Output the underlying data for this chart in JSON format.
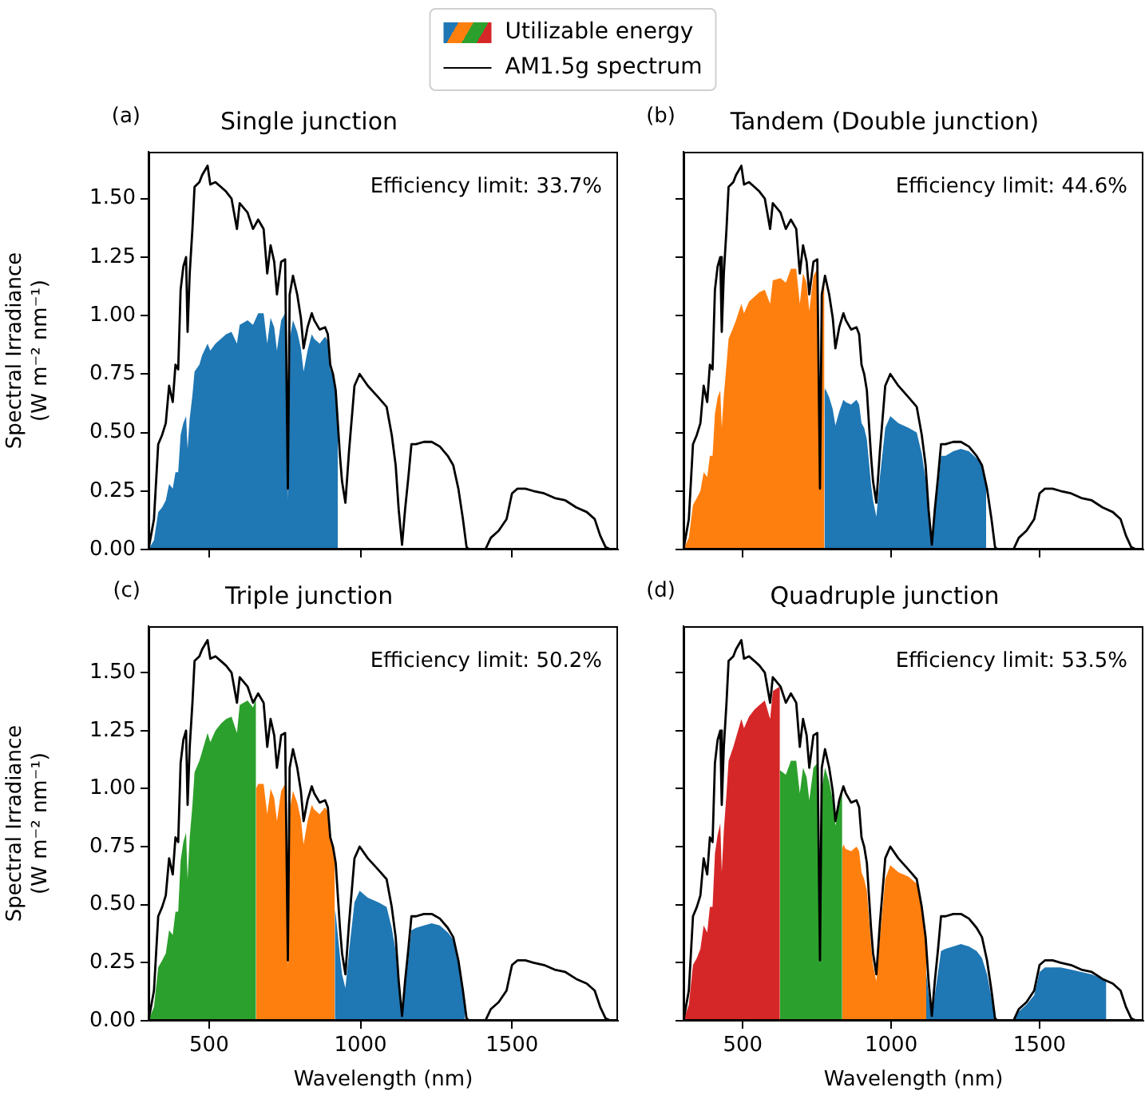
{
  "chart_data": [
    {
      "type": "area",
      "title": "Single junction",
      "ylabel": "Spectral Irradiance\n(W m⁻² nm⁻¹)",
      "xlim": [
        300,
        1850
      ],
      "xticks": [
        500,
        1000,
        1500
      ],
      "ylim": [
        0,
        1.7
      ],
      "yticks": [
        {
          "value": 0,
          "label": "0.00"
        },
        0.25,
        {
          "value": 0.5,
          "label": "0.50"
        },
        0.75,
        {
          "value": 1,
          "label": "1.00"
        },
        1.25,
        {
          "value": 1.5,
          "label": "1.50"
        }
      ],
      "tick_labels": "y",
      "legend": "top",
      "annotations": [
        "(a)",
        "Efficiency limit: 33.7%"
      ],
      "series": [
        {
          "name": "Utilizable energy",
          "color": "#1f77b4",
          "x": [
            300,
            318,
            332,
            345,
            357,
            368,
            380,
            389,
            398,
            406,
            415,
            424,
            429,
            436,
            445,
            452,
            468,
            477,
            495,
            504,
            521,
            539,
            556,
            574,
            592,
            601,
            627,
            645,
            662,
            680,
            692,
            703,
            715,
            724,
            738,
            751,
            760,
            766,
            777,
            791,
            803,
            812,
            825,
            839,
            847,
            865,
            883,
            892,
            900,
            909,
            918,
            925
          ],
          "values": [
            0,
            0.04,
            0.16,
            0.18,
            0.21,
            0.28,
            0.26,
            0.33,
            0.33,
            0.49,
            0.54,
            0.57,
            0.43,
            0.56,
            0.66,
            0.76,
            0.79,
            0.83,
            0.88,
            0.85,
            0.88,
            0.9,
            0.92,
            0.93,
            0.88,
            0.96,
            0.98,
            0.96,
            1.01,
            1.01,
            0.88,
            0.99,
            0.95,
            0.85,
            0.98,
            1.01,
            0.21,
            0.9,
            0.98,
            0.93,
            0.86,
            0.76,
            0.85,
            0.92,
            0.9,
            0.88,
            0.91,
            0.89,
            0.77,
            0.74,
            0.67,
            0.54
          ]
        },
        {
          "name": "AM1.5g spectrum",
          "type": "line",
          "color": "#000000",
          "x": [
            300,
            318,
            332,
            345,
            357,
            368,
            380,
            389,
            398,
            406,
            415,
            424,
            429,
            436,
            445,
            452,
            468,
            477,
            495,
            504,
            521,
            539,
            556,
            574,
            592,
            601,
            627,
            645,
            662,
            680,
            692,
            703,
            715,
            724,
            738,
            751,
            760,
            766,
            777,
            791,
            803,
            812,
            825,
            839,
            847,
            865,
            883,
            892,
            900,
            909,
            918,
            932,
            939,
            950,
            962,
            980,
            997,
            1024,
            1059,
            1086,
            1103,
            1116,
            1126,
            1137,
            1147,
            1158,
            1168,
            1183,
            1209,
            1235,
            1262,
            1288,
            1306,
            1323,
            1338,
            1350,
            1359,
            1412,
            1430,
            1456,
            1482,
            1500,
            1518,
            1544,
            1571,
            1606,
            1641,
            1676,
            1712,
            1747,
            1773,
            1791,
            1809,
            1826
          ],
          "values": [
            0,
            0.13,
            0.45,
            0.49,
            0.54,
            0.7,
            0.63,
            0.79,
            0.77,
            1.11,
            1.21,
            1.25,
            0.93,
            1.18,
            1.37,
            1.55,
            1.57,
            1.6,
            1.64,
            1.56,
            1.57,
            1.55,
            1.53,
            1.5,
            1.37,
            1.48,
            1.44,
            1.37,
            1.41,
            1.37,
            1.18,
            1.3,
            1.23,
            1.09,
            1.23,
            1.24,
            0.26,
            1.09,
            1.17,
            1.09,
            0.99,
            0.86,
            0.95,
            1.01,
            0.98,
            0.94,
            0.95,
            0.92,
            0.79,
            0.75,
            0.68,
            0.4,
            0.29,
            0.2,
            0.42,
            0.7,
            0.75,
            0.7,
            0.65,
            0.61,
            0.49,
            0.36,
            0.17,
            0.02,
            0.17,
            0.31,
            0.45,
            0.45,
            0.46,
            0.46,
            0.44,
            0.4,
            0.36,
            0.26,
            0.13,
            0.01,
            0,
            0,
            0.05,
            0.08,
            0.13,
            0.24,
            0.26,
            0.26,
            0.25,
            0.24,
            0.22,
            0.21,
            0.18,
            0.16,
            0.13,
            0.06,
            0.01,
            0
          ]
        }
      ]
    },
    {
      "type": "area",
      "title": "Tandem (Double junction)",
      "xlim": [
        300,
        1850
      ],
      "xticks": [
        500,
        1000,
        1500
      ],
      "ylim": [
        0,
        1.7
      ],
      "yticks": [
        0,
        0.25,
        0.5,
        0.75,
        1,
        1.25,
        1.5
      ],
      "tick_labels": false,
      "annotations": [
        "(b)",
        "Efficiency limit: 44.6%"
      ],
      "series": [
        {
          "color": "#ff7f0e",
          "x": [
            300,
            318,
            332,
            345,
            357,
            368,
            380,
            389,
            398,
            406,
            415,
            424,
            429,
            436,
            445,
            452,
            468,
            477,
            495,
            504,
            521,
            539,
            556,
            574,
            592,
            601,
            627,
            645,
            662,
            680,
            692,
            703,
            715,
            724,
            738,
            751,
            760,
            766,
            775
          ],
          "values": [
            0,
            0.05,
            0.19,
            0.22,
            0.25,
            0.33,
            0.31,
            0.4,
            0.4,
            0.58,
            0.65,
            0.68,
            0.52,
            0.66,
            0.79,
            0.9,
            0.95,
            0.98,
            1.05,
            1.01,
            1.06,
            1.08,
            1.1,
            1.11,
            1.05,
            1.15,
            1.16,
            1.14,
            1.2,
            1.2,
            1.05,
            1.18,
            1.14,
            1.02,
            1.17,
            1.2,
            0.26,
            1.08,
            1.16
          ]
        },
        {
          "color": "#1f77b4",
          "x": [
            775,
            777,
            791,
            803,
            812,
            825,
            839,
            847,
            865,
            883,
            892,
            900,
            909,
            918,
            932,
            939,
            950,
            962,
            980,
            997,
            1024,
            1059,
            1086,
            1103,
            1116,
            1126,
            1137,
            1147,
            1158,
            1168,
            1183,
            1209,
            1235,
            1262,
            1288,
            1306,
            1320
          ],
          "values": [
            0.68,
            0.69,
            0.65,
            0.6,
            0.53,
            0.59,
            0.64,
            0.63,
            0.62,
            0.64,
            0.62,
            0.54,
            0.52,
            0.47,
            0.28,
            0.21,
            0.14,
            0.31,
            0.52,
            0.57,
            0.54,
            0.52,
            0.5,
            0.41,
            0.3,
            0.15,
            0.02,
            0.15,
            0.27,
            0.4,
            0.4,
            0.42,
            0.43,
            0.42,
            0.39,
            0.36,
            0.28
          ]
        },
        {
          "type": "line",
          "color": "#000000",
          "x": [
            300,
            318,
            332,
            345,
            357,
            368,
            380,
            389,
            398,
            406,
            415,
            424,
            429,
            436,
            445,
            452,
            468,
            477,
            495,
            504,
            521,
            539,
            556,
            574,
            592,
            601,
            627,
            645,
            662,
            680,
            692,
            703,
            715,
            724,
            738,
            751,
            760,
            766,
            777,
            791,
            803,
            812,
            825,
            839,
            847,
            865,
            883,
            892,
            900,
            909,
            918,
            932,
            939,
            950,
            962,
            980,
            997,
            1024,
            1059,
            1086,
            1103,
            1116,
            1126,
            1137,
            1147,
            1158,
            1168,
            1183,
            1209,
            1235,
            1262,
            1288,
            1306,
            1323,
            1338,
            1350,
            1359,
            1412,
            1430,
            1456,
            1482,
            1500,
            1518,
            1544,
            1571,
            1606,
            1641,
            1676,
            1712,
            1747,
            1773,
            1791,
            1809,
            1826
          ],
          "values": [
            0,
            0.13,
            0.45,
            0.49,
            0.54,
            0.7,
            0.63,
            0.79,
            0.77,
            1.11,
            1.21,
            1.25,
            0.93,
            1.18,
            1.37,
            1.55,
            1.57,
            1.6,
            1.64,
            1.56,
            1.57,
            1.55,
            1.53,
            1.5,
            1.37,
            1.48,
            1.44,
            1.37,
            1.41,
            1.37,
            1.18,
            1.3,
            1.23,
            1.09,
            1.23,
            1.24,
            0.26,
            1.09,
            1.17,
            1.09,
            0.99,
            0.86,
            0.95,
            1.01,
            0.98,
            0.94,
            0.95,
            0.92,
            0.79,
            0.75,
            0.68,
            0.4,
            0.29,
            0.2,
            0.42,
            0.7,
            0.75,
            0.7,
            0.65,
            0.61,
            0.49,
            0.36,
            0.17,
            0.02,
            0.17,
            0.31,
            0.45,
            0.45,
            0.46,
            0.46,
            0.44,
            0.4,
            0.36,
            0.26,
            0.13,
            0.01,
            0,
            0,
            0.05,
            0.08,
            0.13,
            0.24,
            0.26,
            0.26,
            0.25,
            0.24,
            0.22,
            0.21,
            0.18,
            0.16,
            0.13,
            0.06,
            0.01,
            0
          ]
        }
      ]
    },
    {
      "type": "area",
      "title": "Triple junction",
      "xlabel": "Wavelength (nm)",
      "ylabel": "Spectral Irradiance\n(W m⁻² nm⁻¹)",
      "xlim": [
        300,
        1850
      ],
      "xticks": [
        500,
        1000,
        1500
      ],
      "ylim": [
        0,
        1.7
      ],
      "yticks": [
        {
          "value": 0,
          "label": "0.00"
        },
        0.25,
        {
          "value": 0.5,
          "label": "0.50"
        },
        0.75,
        {
          "value": 1,
          "label": "1.00"
        },
        1.25,
        {
          "value": 1.5,
          "label": "1.50"
        }
      ],
      "annotations": [
        "(c)",
        "Efficiency limit: 50.2%"
      ],
      "series": [
        {
          "color": "#2ca02c",
          "x": [
            300,
            318,
            332,
            345,
            357,
            368,
            380,
            389,
            398,
            406,
            415,
            424,
            429,
            436,
            445,
            452,
            468,
            477,
            495,
            504,
            521,
            539,
            556,
            574,
            592,
            601,
            627,
            645,
            655
          ],
          "values": [
            0,
            0.06,
            0.23,
            0.26,
            0.29,
            0.39,
            0.37,
            0.47,
            0.47,
            0.69,
            0.77,
            0.81,
            0.61,
            0.79,
            0.93,
            1.07,
            1.12,
            1.16,
            1.24,
            1.2,
            1.25,
            1.28,
            1.3,
            1.31,
            1.24,
            1.36,
            1.38,
            1.35,
            1.39
          ]
        },
        {
          "color": "#ff7f0e",
          "x": [
            655,
            662,
            680,
            692,
            703,
            715,
            724,
            738,
            751,
            760,
            766,
            777,
            791,
            803,
            812,
            825,
            839,
            847,
            865,
            883,
            892,
            900,
            909,
            915
          ],
          "values": [
            1,
            1.02,
            1.02,
            0.89,
            1,
            0.96,
            0.86,
            0.99,
            1.02,
            0.22,
            0.91,
            0.99,
            0.94,
            0.87,
            0.76,
            0.86,
            0.93,
            0.91,
            0.89,
            0.92,
            0.9,
            0.78,
            0.74,
            0.7
          ]
        },
        {
          "color": "#1f77b4",
          "x": [
            915,
            918,
            932,
            939,
            950,
            962,
            980,
            997,
            1024,
            1059,
            1086,
            1103,
            1116,
            1126,
            1137,
            1147,
            1158,
            1168,
            1183,
            1209,
            1235,
            1262,
            1288,
            1306,
            1323,
            1338,
            1345
          ],
          "values": [
            0.48,
            0.46,
            0.28,
            0.2,
            0.14,
            0.3,
            0.51,
            0.56,
            0.53,
            0.51,
            0.49,
            0.4,
            0.3,
            0.14,
            0.02,
            0.15,
            0.27,
            0.39,
            0.4,
            0.41,
            0.42,
            0.41,
            0.38,
            0.35,
            0.26,
            0.13,
            0.07
          ]
        },
        {
          "type": "line",
          "color": "#000000",
          "x": [
            300,
            318,
            332,
            345,
            357,
            368,
            380,
            389,
            398,
            406,
            415,
            424,
            429,
            436,
            445,
            452,
            468,
            477,
            495,
            504,
            521,
            539,
            556,
            574,
            592,
            601,
            627,
            645,
            662,
            680,
            692,
            703,
            715,
            724,
            738,
            751,
            760,
            766,
            777,
            791,
            803,
            812,
            825,
            839,
            847,
            865,
            883,
            892,
            900,
            909,
            918,
            932,
            939,
            950,
            962,
            980,
            997,
            1024,
            1059,
            1086,
            1103,
            1116,
            1126,
            1137,
            1147,
            1158,
            1168,
            1183,
            1209,
            1235,
            1262,
            1288,
            1306,
            1323,
            1338,
            1350,
            1359,
            1412,
            1430,
            1456,
            1482,
            1500,
            1518,
            1544,
            1571,
            1606,
            1641,
            1676,
            1712,
            1747,
            1773,
            1791,
            1809,
            1826
          ],
          "values": [
            0,
            0.13,
            0.45,
            0.49,
            0.54,
            0.7,
            0.63,
            0.79,
            0.77,
            1.11,
            1.21,
            1.25,
            0.93,
            1.18,
            1.37,
            1.55,
            1.57,
            1.6,
            1.64,
            1.56,
            1.57,
            1.55,
            1.53,
            1.5,
            1.37,
            1.48,
            1.44,
            1.37,
            1.41,
            1.37,
            1.18,
            1.3,
            1.23,
            1.09,
            1.23,
            1.24,
            0.26,
            1.09,
            1.17,
            1.09,
            0.99,
            0.86,
            0.95,
            1.01,
            0.98,
            0.94,
            0.95,
            0.92,
            0.79,
            0.75,
            0.68,
            0.4,
            0.29,
            0.2,
            0.42,
            0.7,
            0.75,
            0.7,
            0.65,
            0.61,
            0.49,
            0.36,
            0.17,
            0.02,
            0.17,
            0.31,
            0.45,
            0.45,
            0.46,
            0.46,
            0.44,
            0.4,
            0.36,
            0.26,
            0.13,
            0.01,
            0,
            0,
            0.05,
            0.08,
            0.13,
            0.24,
            0.26,
            0.26,
            0.25,
            0.24,
            0.22,
            0.21,
            0.18,
            0.16,
            0.13,
            0.06,
            0.01,
            0
          ]
        }
      ]
    },
    {
      "type": "area",
      "title": "Quadruple junction",
      "xlabel": "Wavelength (nm)",
      "xlim": [
        300,
        1850
      ],
      "xticks": [
        500,
        1000,
        1500
      ],
      "ylim": [
        0,
        1.7
      ],
      "yticks": [
        0,
        0.25,
        0.5,
        0.75,
        1,
        1.25,
        1.5
      ],
      "tick_labels": "x",
      "annotations": [
        "(d)",
        "Efficiency limit: 53.5%"
      ],
      "series": [
        {
          "color": "#d62728",
          "x": [
            300,
            318,
            332,
            345,
            357,
            368,
            380,
            389,
            398,
            406,
            415,
            424,
            429,
            436,
            445,
            452,
            468,
            477,
            495,
            504,
            521,
            539,
            556,
            574,
            592,
            601,
            625
          ],
          "values": [
            0,
            0.07,
            0.24,
            0.27,
            0.31,
            0.41,
            0.38,
            0.49,
            0.49,
            0.72,
            0.8,
            0.85,
            0.64,
            0.82,
            0.98,
            1.12,
            1.18,
            1.22,
            1.3,
            1.26,
            1.31,
            1.34,
            1.36,
            1.38,
            1.3,
            1.42,
            1.44
          ]
        },
        {
          "color": "#2ca02c",
          "x": [
            625,
            627,
            645,
            662,
            680,
            692,
            703,
            715,
            724,
            738,
            751,
            760,
            766,
            777,
            791,
            803,
            812,
            825,
            835
          ],
          "values": [
            1.08,
            1.08,
            1.06,
            1.12,
            1.12,
            0.98,
            1.09,
            1.05,
            0.95,
            1.09,
            1.11,
            0.24,
            1,
            1.09,
            1.03,
            0.95,
            0.84,
            0.94,
            0.99
          ]
        },
        {
          "color": "#ff7f0e",
          "x": [
            835,
            839,
            847,
            865,
            883,
            892,
            900,
            909,
            918,
            932,
            939,
            950,
            962,
            980,
            997,
            1024,
            1059,
            1086,
            1103,
            1116,
            1118
          ],
          "values": [
            0.74,
            0.76,
            0.74,
            0.73,
            0.75,
            0.73,
            0.64,
            0.61,
            0.56,
            0.33,
            0.24,
            0.17,
            0.36,
            0.61,
            0.67,
            0.64,
            0.62,
            0.59,
            0.48,
            0.36,
            0.33
          ]
        },
        {
          "color": "#1f77b4",
          "x": [
            1118,
            1126,
            1137,
            1147,
            1158,
            1168,
            1183,
            1209,
            1235,
            1262,
            1288,
            1306,
            1323,
            1338,
            1350,
            1359,
            1412,
            1430,
            1456,
            1482,
            1500,
            1518,
            1544,
            1571,
            1606,
            1641,
            1676,
            1712,
            1725
          ],
          "values": [
            0.21,
            0.11,
            0.01,
            0.11,
            0.21,
            0.3,
            0.31,
            0.32,
            0.33,
            0.32,
            0.3,
            0.27,
            0.2,
            0.1,
            0.01,
            0,
            0,
            0.04,
            0.07,
            0.11,
            0.21,
            0.23,
            0.23,
            0.23,
            0.22,
            0.21,
            0.2,
            0.18,
            0.17
          ]
        },
        {
          "type": "line",
          "color": "#000000",
          "x": [
            300,
            318,
            332,
            345,
            357,
            368,
            380,
            389,
            398,
            406,
            415,
            424,
            429,
            436,
            445,
            452,
            468,
            477,
            495,
            504,
            521,
            539,
            556,
            574,
            592,
            601,
            627,
            645,
            662,
            680,
            692,
            703,
            715,
            724,
            738,
            751,
            760,
            766,
            777,
            791,
            803,
            812,
            825,
            839,
            847,
            865,
            883,
            892,
            900,
            909,
            918,
            932,
            939,
            950,
            962,
            980,
            997,
            1024,
            1059,
            1086,
            1103,
            1116,
            1126,
            1137,
            1147,
            1158,
            1168,
            1183,
            1209,
            1235,
            1262,
            1288,
            1306,
            1323,
            1338,
            1350,
            1359,
            1412,
            1430,
            1456,
            1482,
            1500,
            1518,
            1544,
            1571,
            1606,
            1641,
            1676,
            1712,
            1747,
            1773,
            1791,
            1809,
            1826
          ],
          "values": [
            0,
            0.13,
            0.45,
            0.49,
            0.54,
            0.7,
            0.63,
            0.79,
            0.77,
            1.11,
            1.21,
            1.25,
            0.93,
            1.18,
            1.37,
            1.55,
            1.57,
            1.6,
            1.64,
            1.56,
            1.57,
            1.55,
            1.53,
            1.5,
            1.37,
            1.48,
            1.44,
            1.37,
            1.41,
            1.37,
            1.18,
            1.3,
            1.23,
            1.09,
            1.23,
            1.24,
            0.26,
            1.09,
            1.17,
            1.09,
            0.99,
            0.86,
            0.95,
            1.01,
            0.98,
            0.94,
            0.95,
            0.92,
            0.79,
            0.75,
            0.68,
            0.4,
            0.29,
            0.2,
            0.42,
            0.7,
            0.75,
            0.7,
            0.65,
            0.61,
            0.49,
            0.36,
            0.17,
            0.02,
            0.17,
            0.31,
            0.45,
            0.45,
            0.46,
            0.46,
            0.44,
            0.4,
            0.36,
            0.26,
            0.13,
            0.01,
            0,
            0,
            0.05,
            0.08,
            0.13,
            0.24,
            0.26,
            0.26,
            0.25,
            0.24,
            0.22,
            0.21,
            0.18,
            0.16,
            0.13,
            0.06,
            0.01,
            0
          ]
        }
      ]
    }
  ]
}
